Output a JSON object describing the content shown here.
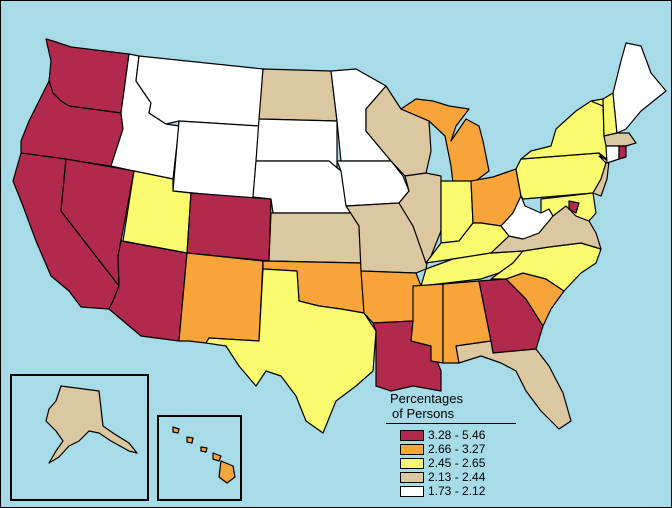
{
  "legend": {
    "title_line1": "Percentages",
    "title_line2": "of Persons",
    "classes": [
      {
        "label": "3.28 - 5.46",
        "color": "#b12a4e"
      },
      {
        "label": "2.66 - 3.27",
        "color": "#f7a43a"
      },
      {
        "label": "2.45 - 2.65",
        "color": "#fafa6e"
      },
      {
        "label": "2.13 - 2.44",
        "color": "#dcc8a0"
      },
      {
        "label": "1.73 - 2.12",
        "color": "#ffffff"
      }
    ]
  },
  "ocean_color": "#a7dbe8",
  "states": {
    "WA": "3.28 - 5.46",
    "OR": "3.28 - 5.46",
    "CA": "3.28 - 5.46",
    "NV": "3.28 - 5.46",
    "AZ": "3.28 - 5.46",
    "CO": "3.28 - 5.46",
    "LA": "3.28 - 5.46",
    "GA": "3.28 - 5.46",
    "DE": "3.28 - 5.46",
    "RI": "3.28 - 5.46",
    "NM": "2.66 - 3.27",
    "OK": "2.66 - 3.27",
    "AR": "2.66 - 3.27",
    "MS": "2.66 - 3.27",
    "AL": "2.66 - 3.27",
    "SC": "2.66 - 3.27",
    "MI": "2.66 - 3.27",
    "OH": "2.66 - 3.27",
    "HI": "2.66 - 3.27",
    "UT": "2.45 - 2.65",
    "TX": "2.45 - 2.65",
    "IN": "2.45 - 2.65",
    "KY": "2.45 - 2.65",
    "TN": "2.45 - 2.65",
    "NC": "2.45 - 2.65",
    "NY": "2.45 - 2.65",
    "PA": "2.45 - 2.65",
    "VT": "2.45 - 2.65",
    "NH": "2.45 - 2.65",
    "MD": "2.45 - 2.65",
    "ND": "2.13 - 2.44",
    "KS": "2.13 - 2.44",
    "MO": "2.13 - 2.44",
    "IL": "2.13 - 2.44",
    "WI": "2.13 - 2.44",
    "VA": "2.13 - 2.44",
    "FL": "2.13 - 2.44",
    "NJ": "2.13 - 2.44",
    "MA": "2.13 - 2.44",
    "AK": "2.13 - 2.44",
    "MT": "1.73 - 2.12",
    "ID": "1.73 - 2.12",
    "WY": "1.73 - 2.12",
    "SD": "1.73 - 2.12",
    "NE": "1.73 - 2.12",
    "MN": "1.73 - 2.12",
    "IA": "1.73 - 2.12",
    "WV": "1.73 - 2.12",
    "ME": "1.73 - 2.12",
    "CT": "1.73 - 2.12"
  }
}
